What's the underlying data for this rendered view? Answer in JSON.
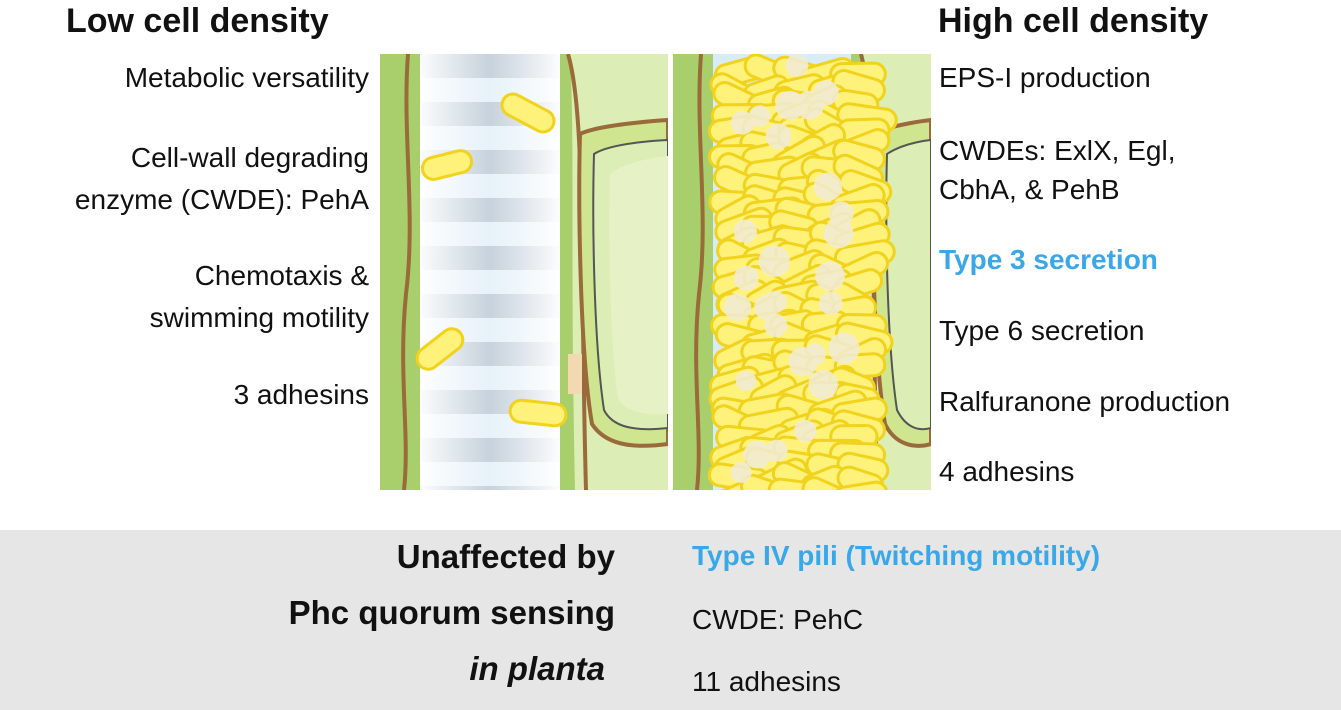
{
  "low": {
    "title": "Low cell density",
    "features": [
      "Metabolic versatility",
      "Cell-wall degrading",
      "enzyme (CWDE): PehA",
      "Chemotaxis &",
      "swimming motility",
      "3 adhesins"
    ]
  },
  "high": {
    "title": "High cell density",
    "features": [
      "EPS-I production",
      "CWDEs: ExlX, Egl,",
      "CbhA, & PehB",
      "Type 3 secretion",
      "Type 6 secretion",
      "Ralfuranone production",
      "4 adhesins"
    ]
  },
  "unaffected": {
    "heading_line1": "Unaffected by",
    "heading_line2": "Phc quorum sensing",
    "heading_line3": "in planta",
    "features": [
      "Type IV pili (Twitching motility)",
      "CWDE: PehC",
      "11 adhesins"
    ]
  },
  "colors": {
    "highlight": "#3aa7e8",
    "bacteria_fill": "#fff27a",
    "bacteria_stroke": "#f1d21c",
    "plant_green": "#a9cf6c",
    "cell_interior": "#dcedb5",
    "cell_wall": "#9a6a3a",
    "vessel_lumen": "#d8ecf8",
    "band_gray": "#e6e6e6"
  }
}
